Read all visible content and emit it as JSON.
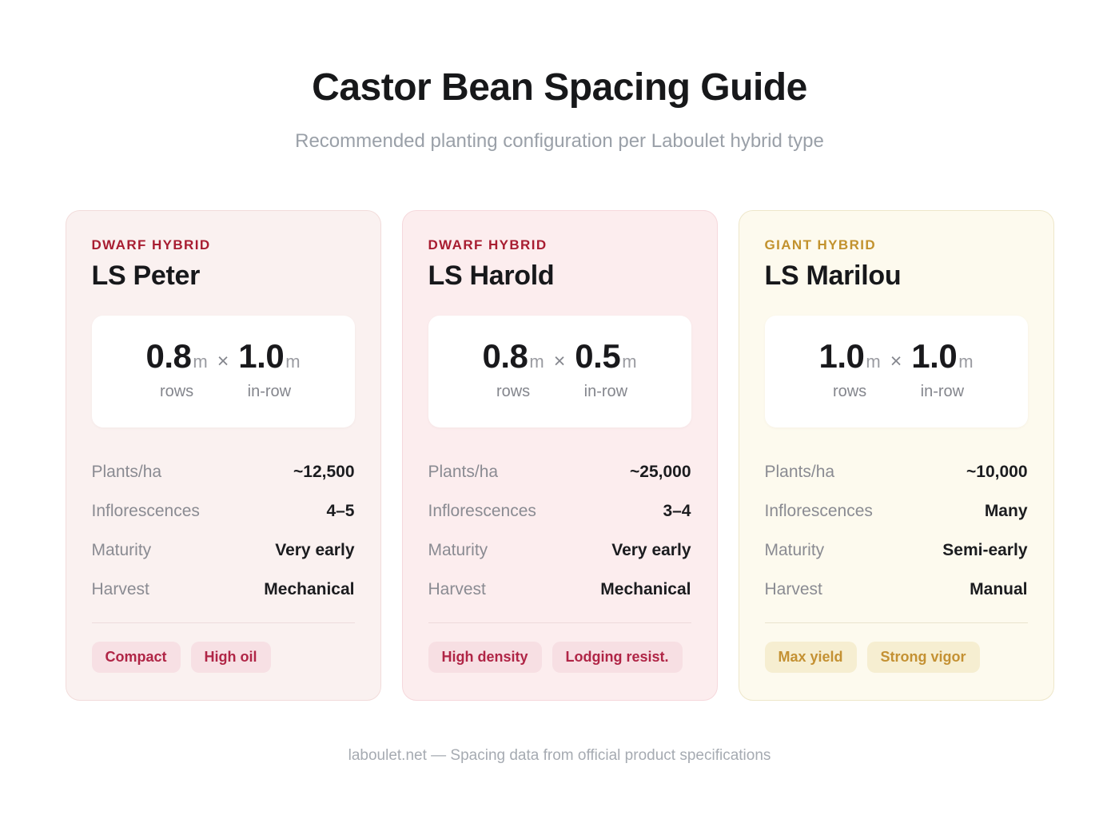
{
  "page": {
    "title": "Castor Bean Spacing Guide",
    "subtitle": "Recommended planting configuration per Laboulet hybrid type",
    "footer": "laboulet.net — Spacing data from official product specifications"
  },
  "cards": [
    {
      "type_label": "DWARF HYBRID",
      "name": "LS Peter",
      "colors": {
        "accent": "#a81d31",
        "card_bg": "#faf1f0",
        "card_border": "#f2dcdb",
        "divider": "#eddcdc",
        "tag_bg": "#f7e0e4",
        "tag_text": "#b02546"
      },
      "spacing": {
        "row_value": "0.8",
        "row_unit": "m",
        "times": "×",
        "inrow_value": "1.0",
        "inrow_unit": "m",
        "row_label": "rows",
        "inrow_label": "in-row"
      },
      "details": [
        {
          "label": "Plants/ha",
          "value": "~12,500"
        },
        {
          "label": "Inflorescences",
          "value": "4–5"
        },
        {
          "label": "Maturity",
          "value": "Very early"
        },
        {
          "label": "Harvest",
          "value": "Mechanical"
        }
      ],
      "tags": [
        "Compact",
        "High oil"
      ]
    },
    {
      "type_label": "DWARF HYBRID",
      "name": "LS Harold",
      "colors": {
        "accent": "#a81d31",
        "card_bg": "#fcedee",
        "card_border": "#f6d8dc",
        "divider": "#eed9da",
        "tag_bg": "#f7dfe3",
        "tag_text": "#b02546"
      },
      "spacing": {
        "row_value": "0.8",
        "row_unit": "m",
        "times": "×",
        "inrow_value": "0.5",
        "inrow_unit": "m",
        "row_label": "rows",
        "inrow_label": "in-row"
      },
      "details": [
        {
          "label": "Plants/ha",
          "value": "~25,000"
        },
        {
          "label": "Inflorescences",
          "value": "3–4"
        },
        {
          "label": "Maturity",
          "value": "Very early"
        },
        {
          "label": "Harvest",
          "value": "Mechanical"
        }
      ],
      "tags": [
        "High density",
        "Lodging resist."
      ]
    },
    {
      "type_label": "GIANT HYBRID",
      "name": "LS Marilou",
      "colors": {
        "accent": "#c2922e",
        "card_bg": "#fdfaee",
        "card_border": "#eee7ca",
        "divider": "#eae3cd",
        "tag_bg": "#f6eed1",
        "tag_text": "#c49133"
      },
      "spacing": {
        "row_value": "1.0",
        "row_unit": "m",
        "times": "×",
        "inrow_value": "1.0",
        "inrow_unit": "m",
        "row_label": "rows",
        "inrow_label": "in-row"
      },
      "details": [
        {
          "label": "Plants/ha",
          "value": "~10,000"
        },
        {
          "label": "Inflorescences",
          "value": "Many"
        },
        {
          "label": "Maturity",
          "value": "Semi-early"
        },
        {
          "label": "Harvest",
          "value": "Manual"
        }
      ],
      "tags": [
        "Max yield",
        "Strong vigor"
      ]
    }
  ]
}
